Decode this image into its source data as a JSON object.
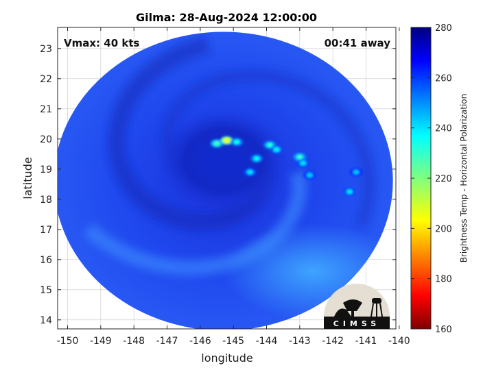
{
  "title": "Gilma: 28-Aug-2024 12:00:00",
  "annotations": {
    "vmax": "Vmax: 40 kts",
    "away": "00:41 away"
  },
  "logo_text": "CIMSS",
  "chart_data": {
    "type": "heatmap",
    "title": "Gilma: 28-Aug-2024 12:00:00",
    "xlabel": "longitude",
    "ylabel": "latitude",
    "xlim": [
      -150.3,
      -140.1
    ],
    "ylim": [
      13.7,
      23.7
    ],
    "xticks": [
      -150,
      -149,
      -148,
      -147,
      -146,
      -145,
      -144,
      -143,
      -142,
      -141,
      -140
    ],
    "yticks": [
      14,
      15,
      16,
      17,
      18,
      19,
      20,
      21,
      22,
      23
    ],
    "grid": true,
    "colorbar": {
      "label": "Brightness Temp - Horizontal Polarization",
      "range": [
        160,
        280
      ],
      "ticks": [
        160,
        180,
        200,
        220,
        240,
        260,
        280
      ],
      "colormap": "jet"
    },
    "storm_center": {
      "lon": -145.3,
      "lat": 19.3
    },
    "swath_center": {
      "lon": -145.3,
      "lat": 18.6
    },
    "cold_cores": [
      {
        "lon": -145.2,
        "lat": 19.95,
        "value": 205
      },
      {
        "lon": -145.5,
        "lat": 19.85,
        "value": 228
      },
      {
        "lon": -144.9,
        "lat": 19.9,
        "value": 235
      },
      {
        "lon": -143.9,
        "lat": 19.8,
        "value": 232
      },
      {
        "lon": -143.7,
        "lat": 19.65,
        "value": 238
      },
      {
        "lon": -143.0,
        "lat": 19.4,
        "value": 230
      },
      {
        "lon": -142.9,
        "lat": 19.2,
        "value": 240
      },
      {
        "lon": -144.3,
        "lat": 19.35,
        "value": 236
      },
      {
        "lon": -144.5,
        "lat": 18.9,
        "value": 240
      },
      {
        "lon": -142.7,
        "lat": 18.8,
        "value": 243
      },
      {
        "lon": -141.5,
        "lat": 18.25,
        "value": 240
      },
      {
        "lon": -141.3,
        "lat": 18.9,
        "value": 244
      }
    ]
  },
  "colors": {
    "background": "#ffffff",
    "axis": "#222222",
    "grid": "#c8c8c8"
  }
}
